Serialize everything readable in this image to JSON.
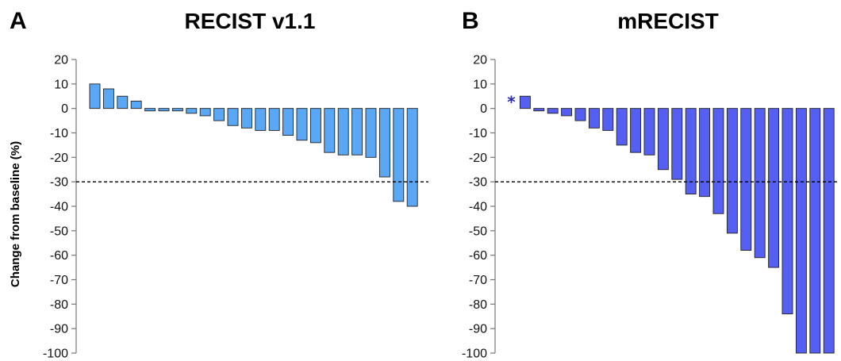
{
  "colors": {
    "panel_a_bar": "#5aa8f5",
    "panel_b_bar": "#5560f2",
    "bar_stroke": "#222222",
    "axis": "#777777",
    "star": "#2a2aa8"
  },
  "chart_data": [
    {
      "type": "bar",
      "panel_letter": "A",
      "title": "RECIST v1.1",
      "ylabel": "Change from baseline (%)",
      "ylim": [
        -100,
        20
      ],
      "yticks": [
        20,
        10,
        0,
        -10,
        -20,
        -30,
        -40,
        -50,
        -60,
        -70,
        -80,
        -90,
        -100
      ],
      "values": [
        10,
        8,
        5,
        3,
        -1,
        -1,
        -1,
        -2,
        -3,
        -5,
        -7,
        -8,
        -9,
        -9,
        -11,
        -13,
        -14,
        -18,
        -19,
        -19,
        -20,
        -28,
        -38,
        -40
      ],
      "reference_line": -30,
      "grid": false
    },
    {
      "type": "bar",
      "panel_letter": "B",
      "title": "mRECIST",
      "ylabel": "",
      "ylim": [
        -100,
        20
      ],
      "yticks": [
        20,
        10,
        0,
        -10,
        -20,
        -30,
        -40,
        -50,
        -60,
        -70,
        -80,
        -90,
        -100
      ],
      "values": [
        null,
        5,
        -1,
        -2,
        -3,
        -5,
        -8,
        -9,
        -15,
        -18,
        -19,
        -25,
        -29,
        -35,
        -36,
        -43,
        -51,
        -58,
        -61,
        -65,
        -84,
        -100,
        -100,
        -100
      ],
      "annotation": "*",
      "reference_line": -30,
      "grid": false
    }
  ]
}
